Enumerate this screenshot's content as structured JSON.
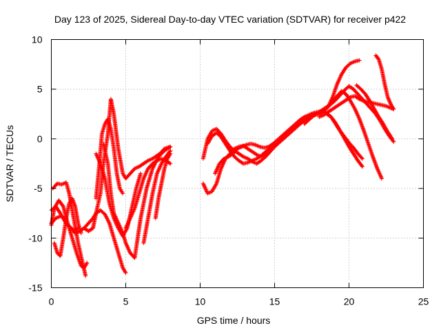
{
  "chart_data": {
    "type": "scatter",
    "title": "Day 123 of 2025, Sidereal Day-to-day VTEC variation (SDTVAR) for receiver p422",
    "xlabel": "GPS time / hours",
    "ylabel": "SDTVAR / TECUs",
    "xlim": [
      0,
      25
    ],
    "ylim": [
      -15,
      10
    ],
    "xticks": [
      0,
      5,
      10,
      15,
      20,
      25
    ],
    "yticks": [
      -15,
      -10,
      -5,
      0,
      5,
      10
    ],
    "grid": true,
    "legend": "none",
    "marker": "plus",
    "color": "#ff0000",
    "tracks": [
      {
        "x": [
          0.0,
          0.3,
          0.6,
          0.9,
          1.0,
          1.3,
          1.6,
          1.9,
          2.2,
          2.5,
          2.8,
          3.0,
          3.3,
          3.6,
          3.9,
          4.2,
          4.5,
          4.8,
          5.0
        ],
        "y": [
          -8.5,
          -8.0,
          -7.8,
          -8.0,
          -8.5,
          -9.0,
          -9.5,
          -9.3,
          -9.0,
          -8.5,
          -8.0,
          -7.5,
          -7.2,
          -7.6,
          -8.5,
          -10.0,
          -11.5,
          -13.0,
          -13.5
        ]
      },
      {
        "x": [
          0.0,
          0.2,
          0.5,
          0.8,
          1.1,
          1.4,
          1.7,
          2.0,
          2.2,
          2.4
        ],
        "y": [
          -8.7,
          -7.0,
          -6.2,
          -6.8,
          -8.5,
          -10.0,
          -11.5,
          -12.8,
          -13.0,
          -12.5
        ]
      },
      {
        "x": [
          0.1,
          0.4,
          0.7,
          1.0,
          1.2,
          1.5,
          1.8,
          2.1,
          2.3
        ],
        "y": [
          -5.0,
          -4.5,
          -4.6,
          -4.4,
          -5.5,
          -8.0,
          -10.5,
          -12.5,
          -13.8
        ]
      },
      {
        "x": [
          0.2,
          0.4,
          0.6,
          0.8,
          1.0,
          1.2,
          1.4,
          1.6,
          1.8,
          2.0
        ],
        "y": [
          -10.5,
          -11.5,
          -11.8,
          -10.0,
          -8.0,
          -6.5,
          -6.0,
          -6.8,
          -8.5,
          -9.5
        ]
      },
      {
        "x": [
          0.0,
          0.3,
          0.6,
          0.9,
          1.2,
          1.5,
          1.8
        ],
        "y": [
          -7.2,
          -6.8,
          -7.5,
          -8.3,
          -8.8,
          -9.2,
          -9.0
        ]
      },
      {
        "x": [
          2.2,
          2.5,
          2.8,
          3.0,
          3.3,
          3.5,
          3.8,
          4.0,
          4.2,
          4.5,
          4.8,
          5.0,
          5.3,
          5.6,
          5.9,
          6.2,
          6.5,
          6.8,
          7.0,
          7.3,
          7.6,
          8.0
        ],
        "y": [
          -9.0,
          -9.3,
          -9.0,
          -7.5,
          -5.5,
          -2.5,
          0.5,
          4.0,
          2.5,
          -1.0,
          -3.5,
          -4.0,
          -3.5,
          -3.0,
          -2.8,
          -2.5,
          -2.2,
          -2.0,
          -1.8,
          -1.5,
          -1.0,
          -0.8
        ]
      },
      {
        "x": [
          3.0,
          3.2,
          3.4,
          3.6,
          3.8,
          4.0,
          4.2,
          4.4,
          4.6,
          4.8
        ],
        "y": [
          -6.0,
          -3.0,
          0.5,
          1.5,
          2.0,
          1.0,
          -1.0,
          -3.5,
          -5.0,
          -5.5
        ]
      },
      {
        "x": [
          3.5,
          3.8,
          4.0,
          4.2,
          4.5,
          4.8,
          5.0,
          5.3,
          5.6,
          6.0,
          6.4,
          6.8,
          7.2,
          7.6,
          8.0
        ],
        "y": [
          -0.5,
          -2.5,
          -5.5,
          -7.5,
          -8.5,
          -9.5,
          -10.5,
          -11.5,
          -12.0,
          -8.0,
          -5.0,
          -3.0,
          -1.8,
          -1.2,
          -0.8
        ]
      },
      {
        "x": [
          3.0,
          3.3,
          3.6,
          3.9,
          4.2,
          4.5,
          4.8,
          5.1,
          5.4,
          5.7,
          6.0
        ],
        "y": [
          -1.5,
          -2.5,
          -4.0,
          -6.5,
          -8.0,
          -9.0,
          -9.8,
          -9.0,
          -7.0,
          -5.0,
          -3.5
        ]
      },
      {
        "x": [
          5.0,
          5.3,
          5.6,
          5.9,
          6.2,
          6.5,
          6.8,
          7.1,
          7.4,
          7.7,
          8.0
        ],
        "y": [
          -9.0,
          -8.0,
          -7.0,
          -5.5,
          -4.0,
          -3.0,
          -2.5,
          -2.2,
          -2.0,
          -2.2,
          -2.5
        ]
      },
      {
        "x": [
          6.2,
          6.5,
          6.8,
          7.1,
          7.4,
          7.7,
          8.0
        ],
        "y": [
          -10.5,
          -8.0,
          -5.5,
          -3.5,
          -2.5,
          -1.8,
          -1.2
        ]
      },
      {
        "x": [
          7.0,
          7.2,
          7.4,
          7.6,
          7.8,
          8.0
        ],
        "y": [
          -8.0,
          -6.0,
          -4.5,
          -3.0,
          -2.0,
          -1.5
        ]
      },
      {
        "x": [
          10.2,
          10.5,
          10.8,
          11.1,
          11.4,
          11.7,
          12.0,
          12.3,
          12.6,
          12.9,
          13.2,
          13.5,
          13.8,
          14.1,
          14.4,
          14.7
        ],
        "y": [
          -4.5,
          -5.5,
          -5.3,
          -4.5,
          -3.0,
          -2.0,
          -1.5,
          -1.0,
          -0.8,
          -0.7,
          -1.0,
          -1.3,
          -1.6,
          -1.8,
          -1.5,
          -1.0
        ]
      },
      {
        "x": [
          10.2,
          10.5,
          10.8,
          11.1,
          11.4,
          11.7,
          12.0,
          12.3,
          12.6,
          12.9,
          13.2,
          13.5,
          13.8,
          14.1,
          14.4,
          14.7,
          15.0,
          15.3,
          15.6,
          15.9,
          16.2,
          16.5,
          16.8,
          17.1,
          17.4,
          17.7,
          18.0,
          18.3,
          18.6,
          18.9,
          19.2,
          19.5,
          19.8,
          20.1,
          20.4,
          20.7
        ],
        "y": [
          -2.0,
          0.0,
          0.8,
          1.0,
          0.5,
          -0.2,
          -0.8,
          -1.2,
          -1.5,
          -1.8,
          -2.0,
          -2.3,
          -2.5,
          -2.2,
          -1.8,
          -1.3,
          -0.8,
          -0.4,
          0.0,
          0.4,
          0.8,
          1.2,
          1.6,
          2.0,
          2.3,
          2.5,
          2.6,
          2.8,
          3.2,
          4.2,
          5.5,
          6.5,
          7.2,
          7.6,
          7.8,
          7.9
        ]
      },
      {
        "x": [
          10.5,
          10.8,
          11.1,
          11.4,
          11.7,
          12.0,
          12.3,
          12.6,
          12.9,
          13.2,
          13.5,
          13.8,
          14.1,
          14.4,
          14.7,
          15.0
        ],
        "y": [
          -0.5,
          0.3,
          0.6,
          0.2,
          -0.5,
          -1.2,
          -1.8,
          -2.2,
          -2.5,
          -2.4,
          -2.2,
          -2.0,
          -1.7,
          -1.3,
          -0.9,
          -0.5
        ]
      },
      {
        "x": [
          11.0,
          11.3,
          11.6,
          11.9,
          12.2,
          12.5,
          12.8,
          13.1,
          13.4,
          13.7,
          14.0,
          14.3,
          14.6,
          14.9,
          15.2,
          15.5,
          15.8,
          16.1,
          16.4,
          16.7,
          17.0,
          17.3,
          17.6,
          17.9,
          18.2,
          18.5,
          18.8,
          19.1,
          19.4,
          19.7,
          20.0,
          20.3,
          20.6,
          20.9
        ],
        "y": [
          -3.5,
          -2.5,
          -2.0,
          -1.8,
          -1.5,
          -1.0,
          -0.8,
          -0.6,
          -0.5,
          -0.6,
          -0.8,
          -0.9,
          -0.8,
          -0.5,
          -0.1,
          0.3,
          0.7,
          1.1,
          1.5,
          1.9,
          2.2,
          2.4,
          2.6,
          2.7,
          2.8,
          2.6,
          2.2,
          1.6,
          0.8,
          0.0,
          -0.8,
          -1.5,
          -2.2,
          -2.8
        ]
      },
      {
        "x": [
          15.0,
          15.3,
          15.6,
          15.9,
          16.2,
          16.5,
          16.8,
          17.1,
          17.4,
          17.7,
          18.0,
          18.3,
          18.6,
          18.9,
          19.2,
          19.5,
          19.8,
          20.1,
          20.4,
          20.7,
          21.0,
          21.3,
          21.6,
          21.9,
          22.2
        ],
        "y": [
          -0.8,
          -0.3,
          0.2,
          0.6,
          1.0,
          1.4,
          1.8,
          2.0,
          2.2,
          2.4,
          2.5,
          2.8,
          3.3,
          3.8,
          4.3,
          4.8,
          4.5,
          3.8,
          3.0,
          2.0,
          0.8,
          -0.5,
          -1.8,
          -3.0,
          -4.0
        ]
      },
      {
        "x": [
          17.0,
          17.3,
          17.6,
          17.9,
          18.2,
          18.5,
          18.8,
          19.1,
          19.4,
          19.7,
          20.0,
          20.3,
          20.6,
          20.9,
          21.2,
          21.5,
          21.8,
          22.1,
          22.4,
          22.7,
          23.0
        ],
        "y": [
          1.5,
          1.9,
          2.3,
          2.6,
          2.9,
          3.2,
          3.5,
          3.9,
          4.4,
          4.9,
          5.3,
          5.0,
          4.5,
          4.0,
          3.5,
          3.0,
          2.5,
          1.8,
          1.0,
          0.3,
          -0.3
        ]
      },
      {
        "x": [
          18.0,
          18.3,
          18.6,
          18.9,
          19.2,
          19.5,
          19.8,
          20.1,
          20.4,
          20.7,
          21.0,
          21.3,
          21.6,
          21.9,
          22.2,
          22.5,
          22.8,
          23.0
        ],
        "y": [
          2.2,
          2.4,
          2.7,
          3.0,
          3.3,
          3.6,
          3.9,
          4.2,
          4.3,
          4.0,
          3.8,
          3.7,
          3.6,
          3.5,
          3.4,
          3.3,
          3.1,
          3.0
        ]
      },
      {
        "x": [
          18.5,
          18.8,
          19.1,
          19.4,
          19.7,
          20.0,
          20.3,
          20.6,
          20.9
        ],
        "y": [
          2.5,
          2.2,
          1.5,
          0.8,
          0.2,
          -0.4,
          -0.9,
          -1.5,
          -2.0
        ]
      },
      {
        "x": [
          20.5,
          20.8,
          21.1,
          21.4,
          21.7,
          22.0,
          22.3,
          22.6,
          22.9
        ],
        "y": [
          5.4,
          5.0,
          4.5,
          3.8,
          3.0,
          2.2,
          1.5,
          0.7,
          0.0
        ]
      },
      {
        "x": [
          21.8,
          22.0,
          22.2,
          22.4,
          22.6,
          22.8,
          23.0
        ],
        "y": [
          8.4,
          8.0,
          7.0,
          5.5,
          4.2,
          3.5,
          3.0
        ]
      }
    ]
  }
}
